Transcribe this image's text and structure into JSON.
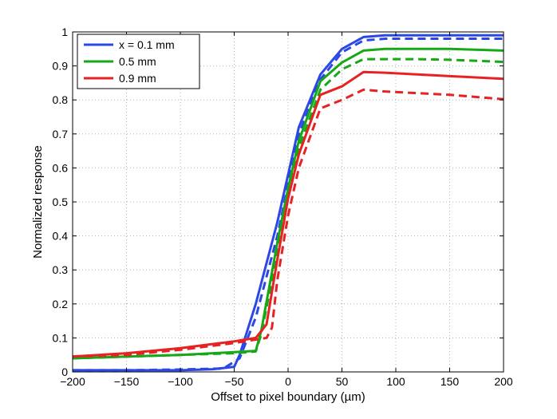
{
  "chart_data": {
    "type": "line",
    "title": "",
    "xlabel": "Offset to pixel boundary (µm)",
    "ylabel": "Normalized response",
    "xlim": [
      -200,
      200
    ],
    "ylim": [
      0,
      1
    ],
    "xticks": [
      -200,
      -150,
      -100,
      -50,
      0,
      50,
      100,
      150,
      200
    ],
    "xtick_labels": [
      "−200",
      "−150",
      "−100",
      "−50",
      "0",
      "50",
      "100",
      "150",
      "200"
    ],
    "yticks": [
      0,
      0.1,
      0.2,
      0.3,
      0.4,
      0.5,
      0.6,
      0.7,
      0.8,
      0.9,
      1
    ],
    "ytick_labels": [
      "0",
      "0.1",
      "0.2",
      "0.3",
      "0.4",
      "0.5",
      "0.6",
      "0.7",
      "0.8",
      "0.9",
      "1"
    ],
    "grid": true,
    "legend_position": "top-left",
    "series": [
      {
        "name": "x = 0.1 mm",
        "color": "#2b47e6",
        "dash": "solid",
        "x": [
          -200,
          -150,
          -100,
          -70,
          -50,
          -45,
          -30,
          -10,
          0,
          10,
          30,
          50,
          70,
          90,
          120,
          150,
          200
        ],
        "y": [
          0.005,
          0.005,
          0.005,
          0.008,
          0.015,
          0.05,
          0.2,
          0.44,
          0.58,
          0.72,
          0.875,
          0.95,
          0.985,
          0.99,
          0.99,
          0.99,
          0.99
        ]
      },
      {
        "name": "",
        "color": "#2b47e6",
        "dash": "dashed",
        "x": [
          -200,
          -150,
          -100,
          -60,
          -45,
          -30,
          -10,
          0,
          10,
          30,
          50,
          70,
          90,
          120,
          150,
          200
        ],
        "y": [
          0.005,
          0.005,
          0.007,
          0.01,
          0.04,
          0.16,
          0.4,
          0.55,
          0.7,
          0.86,
          0.94,
          0.975,
          0.98,
          0.98,
          0.98,
          0.98
        ]
      },
      {
        "name": "0.5 mm",
        "color": "#17a817",
        "dash": "solid",
        "x": [
          -200,
          -150,
          -100,
          -50,
          -30,
          -25,
          -10,
          0,
          10,
          30,
          50,
          70,
          90,
          120,
          150,
          200
        ],
        "y": [
          0.04,
          0.045,
          0.05,
          0.058,
          0.062,
          0.12,
          0.38,
          0.54,
          0.68,
          0.855,
          0.91,
          0.945,
          0.95,
          0.95,
          0.95,
          0.945
        ]
      },
      {
        "name": "",
        "color": "#17a817",
        "dash": "dashed",
        "x": [
          -200,
          -150,
          -100,
          -50,
          -30,
          -25,
          -10,
          0,
          10,
          30,
          50,
          70,
          90,
          120,
          150,
          200
        ],
        "y": [
          0.04,
          0.045,
          0.05,
          0.055,
          0.06,
          0.11,
          0.35,
          0.52,
          0.66,
          0.83,
          0.89,
          0.92,
          0.92,
          0.92,
          0.918,
          0.912
        ]
      },
      {
        "name": "0.9 mm",
        "color": "#e62222",
        "dash": "solid",
        "x": [
          -200,
          -150,
          -100,
          -50,
          -30,
          -20,
          -10,
          0,
          10,
          30,
          50,
          70,
          90,
          120,
          150,
          200
        ],
        "y": [
          0.045,
          0.055,
          0.07,
          0.09,
          0.1,
          0.14,
          0.33,
          0.51,
          0.64,
          0.815,
          0.84,
          0.882,
          0.88,
          0.875,
          0.87,
          0.862
        ]
      },
      {
        "name": "",
        "color": "#e62222",
        "dash": "dashed",
        "x": [
          -200,
          -150,
          -100,
          -50,
          -30,
          -20,
          -15,
          -10,
          0,
          10,
          30,
          50,
          70,
          90,
          120,
          150,
          200
        ],
        "y": [
          0.045,
          0.05,
          0.065,
          0.085,
          0.095,
          0.1,
          0.13,
          0.27,
          0.46,
          0.6,
          0.775,
          0.8,
          0.83,
          0.825,
          0.82,
          0.815,
          0.802
        ]
      }
    ]
  }
}
